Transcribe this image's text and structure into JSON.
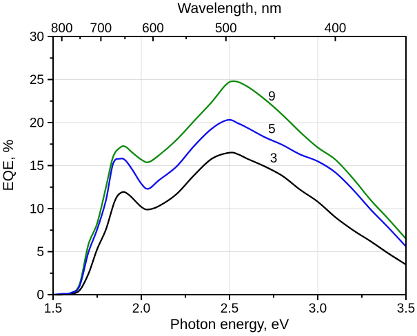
{
  "figure": {
    "background": "#ffffff"
  },
  "chart_data": {
    "type": "line",
    "top_axis_label": "Wavelength, nm",
    "xlabel": "Photon energy, eV",
    "ylabel": "EQE, %",
    "xlim": [
      1.5,
      3.5
    ],
    "ylim": [
      0,
      30
    ],
    "grid": {
      "x_values": [
        2.0,
        2.5,
        3.0
      ],
      "y_values": [
        5,
        10,
        15,
        20,
        25
      ],
      "color": "#dedede"
    },
    "axis_color": "#000000",
    "x_axis": {
      "major_ticks": [
        1.5,
        2.0,
        2.5,
        3.0,
        3.5
      ],
      "major_labels": [
        "1.5",
        "2.0",
        "2.5",
        "3.0",
        "3.5"
      ],
      "minor_ticks": [
        1.75,
        2.25,
        2.75,
        3.25
      ]
    },
    "y_axis": {
      "major_ticks": [
        0,
        5,
        10,
        15,
        20,
        25,
        30
      ],
      "major_labels": [
        "0",
        "5",
        "10",
        "15",
        "20",
        "25",
        "30"
      ],
      "minor_ticks": [
        2.5,
        7.5,
        12.5,
        17.5,
        22.5,
        27.5
      ]
    },
    "top_axis": {
      "unit": "nm",
      "ev_per_nm_constant": 1239.84,
      "major_ticks_nm": [
        800,
        700,
        600,
        500,
        400
      ],
      "major_labels": [
        "800",
        "700",
        "600",
        "500",
        "400"
      ],
      "minor_ticks_nm": [
        750,
        650,
        550,
        450
      ]
    },
    "series": [
      {
        "name": "3",
        "color": "#000000",
        "label_pos": [
          2.75,
          15.9
        ],
        "x": [
          1.5,
          1.55,
          1.6,
          1.65,
          1.7,
          1.75,
          1.8,
          1.85,
          1.89,
          1.93,
          2.0,
          2.04,
          2.1,
          2.2,
          2.3,
          2.4,
          2.5,
          2.55,
          2.6,
          2.7,
          2.8,
          2.9,
          3.0,
          3.1,
          3.2,
          3.3,
          3.4,
          3.5
        ],
        "y": [
          0,
          0,
          0.1,
          0.5,
          2.4,
          5.3,
          7.6,
          10.9,
          11.9,
          11.6,
          10.2,
          9.9,
          10.3,
          11.7,
          13.9,
          15.8,
          16.5,
          16.3,
          15.8,
          14.9,
          13.8,
          12.2,
          10.8,
          9.0,
          7.5,
          6.2,
          4.8,
          3.5
        ]
      },
      {
        "name": "9",
        "color": "#0b8a0b",
        "label_pos": [
          2.74,
          23.1
        ],
        "x": [
          1.5,
          1.55,
          1.6,
          1.65,
          1.7,
          1.75,
          1.8,
          1.84,
          1.88,
          1.91,
          1.95,
          2.0,
          2.04,
          2.1,
          2.2,
          2.3,
          2.4,
          2.48,
          2.53,
          2.6,
          2.7,
          2.8,
          2.9,
          3.0,
          3.1,
          3.2,
          3.3,
          3.4,
          3.5
        ],
        "y": [
          0,
          0.1,
          0.2,
          1.2,
          5.8,
          8.3,
          12.5,
          16.0,
          17.1,
          17.2,
          16.5,
          15.7,
          15.4,
          16.2,
          18.0,
          20.2,
          22.4,
          24.4,
          24.8,
          24.2,
          22.7,
          20.9,
          18.9,
          17.1,
          15.7,
          13.5,
          11.0,
          8.8,
          6.5
        ]
      },
      {
        "name": "5",
        "color": "#0d0deb",
        "label_pos": [
          2.74,
          19.3
        ],
        "x": [
          1.5,
          1.55,
          1.6,
          1.65,
          1.7,
          1.75,
          1.8,
          1.84,
          1.88,
          1.91,
          1.95,
          2.0,
          2.04,
          2.1,
          2.2,
          2.3,
          2.4,
          2.49,
          2.55,
          2.6,
          2.7,
          2.8,
          2.9,
          3.0,
          3.1,
          3.2,
          3.3,
          3.4,
          3.5
        ],
        "y": [
          0,
          0.1,
          0.2,
          1.0,
          4.9,
          7.6,
          11.0,
          15.2,
          15.8,
          15.6,
          14.5,
          12.9,
          12.3,
          13.3,
          14.9,
          17.3,
          19.3,
          20.3,
          19.9,
          19.4,
          18.3,
          17.4,
          16.3,
          15.5,
          14.2,
          12.2,
          9.9,
          7.8,
          5.6
        ]
      }
    ]
  }
}
